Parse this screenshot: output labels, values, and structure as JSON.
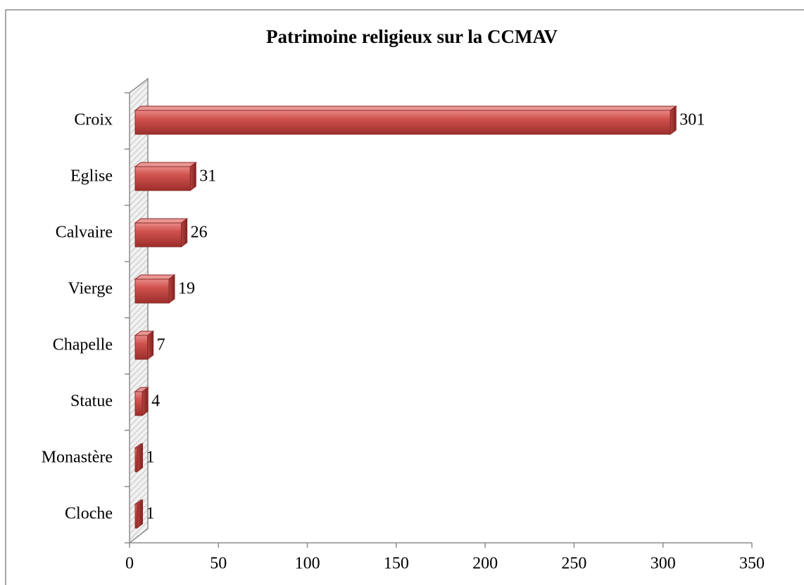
{
  "chart_data": {
    "type": "bar",
    "orientation": "horizontal",
    "title": "Patrimoine religieux sur la CCMAV",
    "categories": [
      "Croix",
      "Eglise",
      "Calvaire",
      "Vierge",
      "Chapelle",
      "Statue",
      "Monastère",
      "Cloche"
    ],
    "values": [
      301,
      31,
      26,
      19,
      7,
      4,
      1,
      1
    ],
    "color": "#c0504d",
    "xlim": [
      0,
      350
    ],
    "xticks": [
      0,
      50,
      100,
      150,
      200,
      250,
      300,
      350
    ],
    "grid": false
  }
}
